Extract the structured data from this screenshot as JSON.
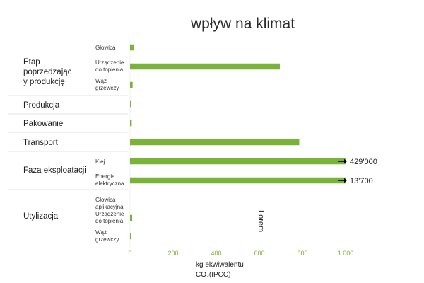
{
  "title": "wpływ na klimat",
  "chart_data": {
    "type": "bar",
    "orientation": "horizontal",
    "title": "wpływ na klimat",
    "xlabel_line1": "kg ekwiwalentu",
    "xlabel_line2": "CO₂(IPCC)",
    "xlim": [
      0,
      1000
    ],
    "xticks": [
      "0",
      "200",
      "400",
      "600",
      "800",
      "1 000"
    ],
    "stages": [
      {
        "label": "Etap poprzedzając y produkcję",
        "items": [
          {
            "label": "Głowica",
            "value": 20
          },
          {
            "label": "Urządzenie do topienia",
            "value": 695
          },
          {
            "label": "Wąż grzewczy",
            "value": 12
          }
        ]
      },
      {
        "label": "Produkcja",
        "items": [
          {
            "label": "",
            "value": 5
          }
        ]
      },
      {
        "label": "Pakowanie",
        "items": [
          {
            "label": "",
            "value": 8
          }
        ]
      },
      {
        "label": "Transport",
        "items": [
          {
            "label": "",
            "value": 785
          }
        ]
      },
      {
        "label": "Faza eksploatacji",
        "items": [
          {
            "label": "Klej",
            "value": 429000,
            "value_label": "429'000",
            "truncated": true
          },
          {
            "label": "Energia elektryczna",
            "value": 13700,
            "value_label": "13'700",
            "truncated": true
          }
        ]
      },
      {
        "label": "Utylizacja",
        "items": [
          {
            "label": "Głowica aplikacyjna",
            "value": 0
          },
          {
            "label": "Urządzenie do topienia",
            "value": 10
          },
          {
            "label": "Wąż grzewczy",
            "value": 3
          }
        ]
      }
    ],
    "annotation": "Lorem",
    "colors": {
      "bar": "#7ab33a",
      "tick_text": "#7ab33a",
      "separator": "#e3e3e3",
      "arrow": "#000000"
    }
  }
}
